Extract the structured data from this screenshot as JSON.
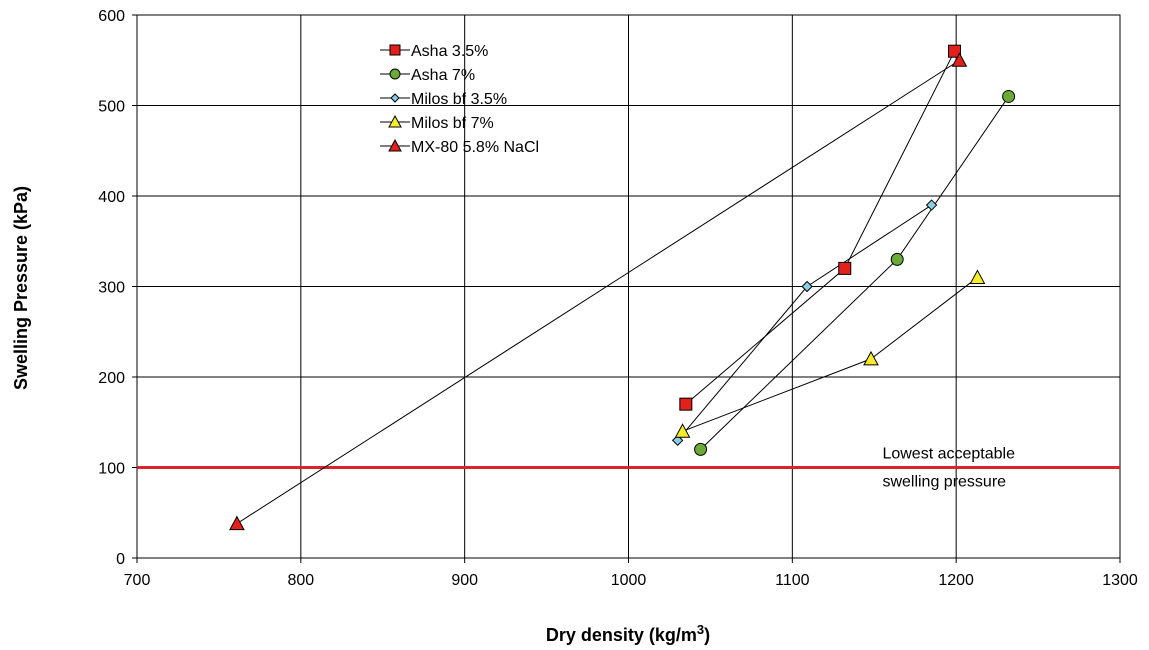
{
  "chart_data": {
    "type": "scatter",
    "title": "",
    "xlabel": "Dry density (kg/m",
    "xlabel_sup": "3",
    "xlabel_end": ")",
    "ylabel": "Swelling Pressure (kPa)",
    "xlim": [
      700,
      1300
    ],
    "ylim": [
      0,
      600
    ],
    "xticks": [
      "700",
      "800",
      "900",
      "1000",
      "1100",
      "1200",
      "1300"
    ],
    "yticks": [
      "0",
      "100",
      "200",
      "300",
      "400",
      "500",
      "600"
    ],
    "grid": true,
    "legend_position": "top-left",
    "series": [
      {
        "name": "Asha 3.5%",
        "marker": "square",
        "color": "#e3201b",
        "x": [
          1035,
          1132,
          1199
        ],
        "y": [
          170,
          320,
          560
        ]
      },
      {
        "name": "Asha 7%",
        "marker": "circle",
        "color": "#6aaa36",
        "x": [
          1044,
          1164,
          1232
        ],
        "y": [
          120,
          330,
          510
        ]
      },
      {
        "name": "Milos bf 3.5%",
        "marker": "diamond",
        "color": "#88cfe6",
        "x": [
          1030,
          1109,
          1185
        ],
        "y": [
          130,
          300,
          390
        ]
      },
      {
        "name": "Milos bf 7%",
        "marker": "triangle",
        "color": "#f7ec2a",
        "x": [
          1033,
          1148,
          1213
        ],
        "y": [
          140,
          220,
          310
        ]
      },
      {
        "name": "MX-80 5.8% NaCl",
        "marker": "triangle",
        "color": "#e3201b",
        "x": [
          761,
          1202
        ],
        "y": [
          38,
          550
        ]
      }
    ],
    "reference_line": {
      "y": 100,
      "color": "#d6262b",
      "label_line1": "Lowest acceptable",
      "label_line2": "swelling pressure",
      "label_x": 1155
    }
  }
}
